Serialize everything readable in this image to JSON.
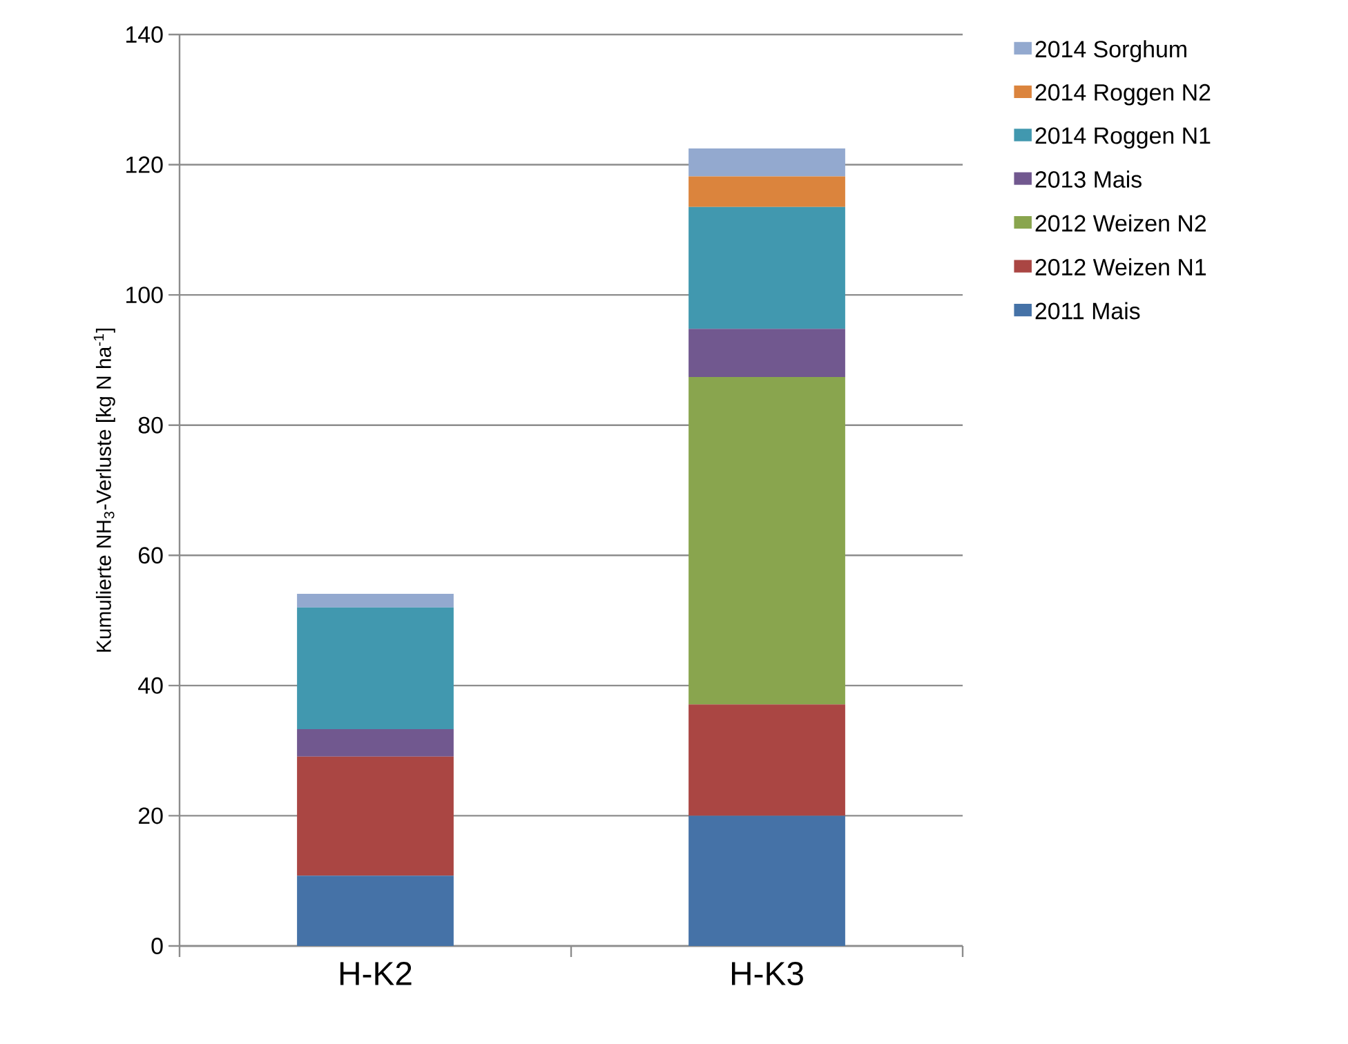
{
  "chart_data": {
    "type": "bar",
    "stacked": true,
    "ylabel": "Kumulierte NH$_{3}$-Verluste [kg N ha$^{-1}$]",
    "categories": [
      "H-K2",
      "H-K3"
    ],
    "series": [
      {
        "name": "2011 Mais",
        "color": "#4572a7",
        "values": [
          10.8,
          20.0
        ]
      },
      {
        "name": "2012 Weizen N1",
        "color": "#aa4643",
        "values": [
          18.3,
          17.1
        ]
      },
      {
        "name": "2012 Weizen N2",
        "color": "#89a54e",
        "values": [
          0,
          50.3
        ]
      },
      {
        "name": "2013 Mais",
        "color": "#71588f",
        "values": [
          4.2,
          7.4
        ]
      },
      {
        "name": "2014 Roggen N1",
        "color": "#4198af",
        "values": [
          18.7,
          18.7
        ]
      },
      {
        "name": "2014 Roggen N2",
        "color": "#db843d",
        "values": [
          0,
          4.7
        ]
      },
      {
        "name": "2014 Sorghum",
        "color": "#93a9cf",
        "values": [
          2.1,
          4.3
        ]
      }
    ],
    "ylim": [
      0,
      140
    ],
    "yticks": [
      0,
      20,
      40,
      60,
      80,
      100,
      120,
      140
    ],
    "grid": "y",
    "legend": "right"
  }
}
